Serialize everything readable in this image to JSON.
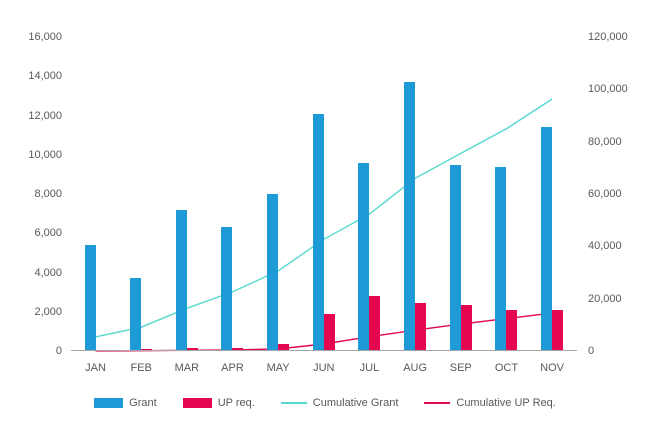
{
  "chart_data": {
    "type": "combo-bar-line",
    "title": "",
    "categories": [
      "JAN",
      "FEB",
      "MAR",
      "APR",
      "MAY",
      "JUN",
      "JUL",
      "AUG",
      "SEP",
      "OCT",
      "NOV"
    ],
    "series": [
      {
        "name": "Grant",
        "type": "bar",
        "axis": "left",
        "color": "#1e9bd7",
        "values": [
          5400,
          3700,
          7200,
          6300,
          8000,
          12100,
          9600,
          13700,
          9500,
          9400,
          11400
        ]
      },
      {
        "name": "UP req.",
        "type": "bar",
        "axis": "left",
        "color": "#e4064e",
        "values": [
          50,
          80,
          150,
          150,
          350,
          1900,
          2800,
          2450,
          2350,
          2100,
          2100
        ]
      },
      {
        "name": "Cumulative Grant",
        "type": "line",
        "axis": "right",
        "color": "#55d9ce",
        "values": [
          5400,
          9100,
          16300,
          22600,
          30600,
          42700,
          52300,
          66000,
          75500,
          84900,
          96300
        ]
      },
      {
        "name": "Cumulative UP Req.",
        "type": "line",
        "axis": "right",
        "color": "#e4064e",
        "values": [
          50,
          130,
          280,
          430,
          780,
          2680,
          5480,
          7930,
          10280,
          12380,
          14480
        ]
      }
    ],
    "left_axis": {
      "min": 0,
      "max": 16000,
      "step": 2000,
      "tick_labels": [
        "0",
        "2,000",
        "4,000",
        "6,000",
        "8,000",
        "10,000",
        "12,000",
        "14,000",
        "16,000"
      ]
    },
    "right_axis": {
      "min": 0,
      "max": 120000,
      "step": 20000,
      "tick_labels": [
        "0",
        "20,000",
        "40,000",
        "60,000",
        "80,000",
        "100,000",
        "120,000"
      ]
    },
    "grid": false,
    "legend_position": "bottom"
  },
  "colors": {
    "axis_text": "#595959",
    "axis_line": "#a6a6a6",
    "background": "#ffffff"
  }
}
